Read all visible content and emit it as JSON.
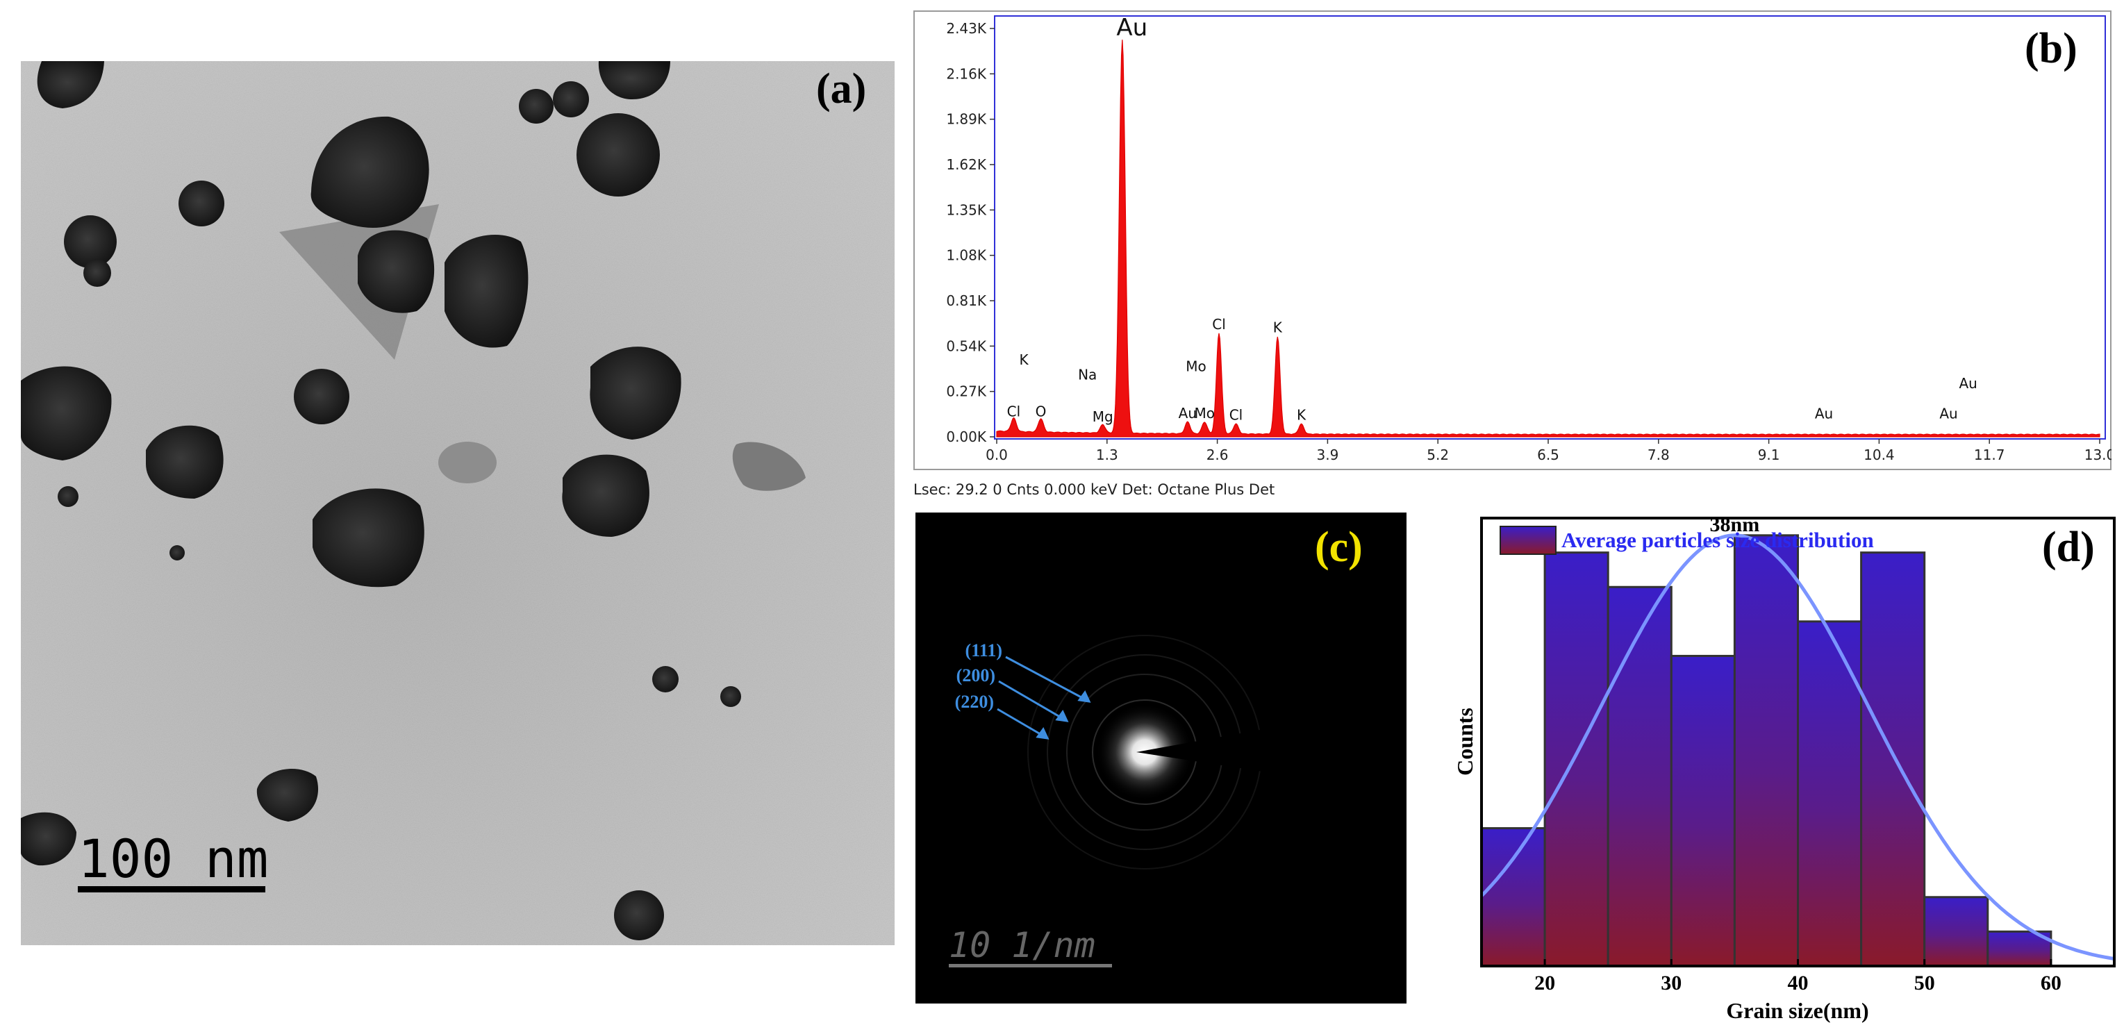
{
  "panel_a": {
    "label": "(a)",
    "scale_bar_label": "100 nm"
  },
  "panel_b": {
    "label": "(b)",
    "status_line": "Lsec: 29.2 0 Cnts  0.000 keV Det: Octane Plus Det"
  },
  "panel_c": {
    "label": "(c)",
    "scale_bar_label": "10 1/nm",
    "annotations": [
      "(111)",
      "(200)",
      "(220)"
    ]
  },
  "panel_d": {
    "label": "(d)"
  },
  "chart_data": [
    {
      "type": "line",
      "panel": "b",
      "xlim": [
        0.0,
        13.0
      ],
      "ylim": [
        0,
        2.43
      ],
      "x_ticks": [
        "0.0",
        "1.3",
        "2.6",
        "3.9",
        "5.2",
        "6.5",
        "7.8",
        "9.1",
        "10.4",
        "11.7",
        "13.0"
      ],
      "y_ticks": [
        "0.00K",
        "0.27K",
        "0.54K",
        "0.81K",
        "1.08K",
        "1.35K",
        "1.62K",
        "1.89K",
        "2.16K",
        "2.43K"
      ],
      "peaks": [
        {
          "label": "Cl",
          "x": 0.2,
          "y": 0.08
        },
        {
          "label": "O",
          "x": 0.52,
          "y": 0.08
        },
        {
          "label": "Mg",
          "x": 1.25,
          "y": 0.05
        },
        {
          "label": "Au",
          "x": 1.48,
          "y": 2.34
        },
        {
          "label": "Au",
          "x": 2.25,
          "y": 0.07
        },
        {
          "label": "Mo",
          "x": 2.45,
          "y": 0.07
        },
        {
          "label": "Cl",
          "x": 2.62,
          "y": 0.6
        },
        {
          "label": "Cl",
          "x": 2.82,
          "y": 0.06
        },
        {
          "label": "K",
          "x": 3.31,
          "y": 0.58
        },
        {
          "label": "K",
          "x": 3.59,
          "y": 0.06
        }
      ],
      "annotations": [
        {
          "text": "K",
          "x": 0.32,
          "y": 0.43
        },
        {
          "text": "Na",
          "x": 1.07,
          "y": 0.34
        },
        {
          "text": "Mo",
          "x": 2.35,
          "y": 0.39
        },
        {
          "text": "Au",
          "x": 9.75,
          "y": 0.11
        },
        {
          "text": "Au",
          "x": 11.22,
          "y": 0.11
        },
        {
          "text": "Au",
          "x": 11.45,
          "y": 0.29
        }
      ]
    },
    {
      "type": "bar",
      "panel": "d",
      "xlabel": "Grain size(nm)",
      "ylabel": "Counts",
      "xlim": [
        15,
        65
      ],
      "ylim": [
        0,
        13
      ],
      "x_ticks": [
        20,
        30,
        40,
        50,
        60
      ],
      "series": [
        {
          "name": "Average particles size distribution",
          "bins": [
            [
              15,
              20
            ],
            [
              20,
              25
            ],
            [
              25,
              30
            ],
            [
              30,
              35
            ],
            [
              35,
              40
            ],
            [
              40,
              45
            ],
            [
              45,
              50
            ],
            [
              50,
              55
            ],
            [
              55,
              60
            ]
          ],
          "values": [
            4,
            12,
            11,
            9,
            12.5,
            10,
            12,
            2,
            1
          ]
        }
      ],
      "fit_peak_label": "38nm",
      "legend": "top-left"
    }
  ]
}
